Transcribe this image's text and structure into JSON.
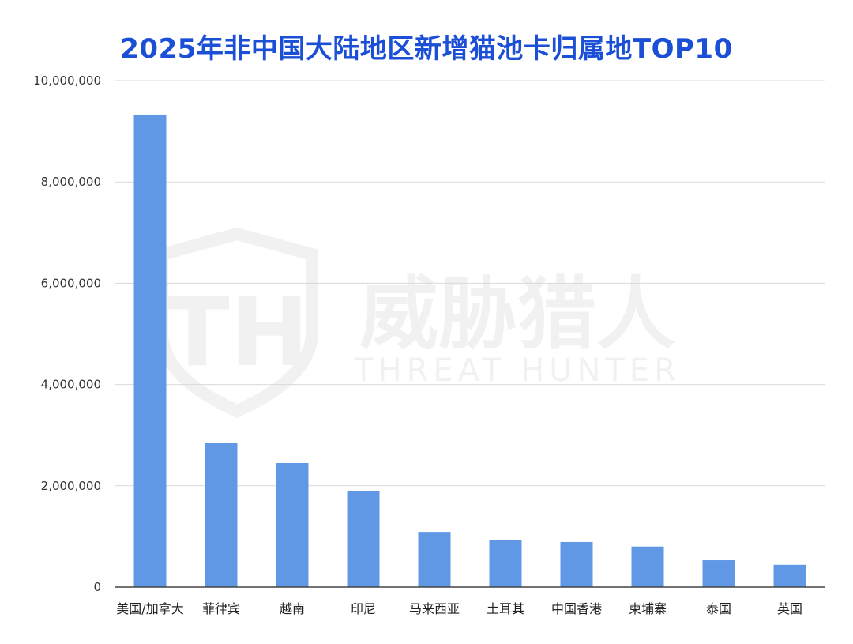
{
  "watermark": {
    "logo_letters": "TH",
    "cn_text": "威胁猎人",
    "en_text": "THREAT HUNTER"
  },
  "colors": {
    "title": "#1a4fd6",
    "bar": "#6098e6",
    "grid": "#d9d9d9",
    "axis": "#444444"
  },
  "chart_data": {
    "type": "bar",
    "title": "2025年非中国大陆地区新增猫池卡归属地TOP10",
    "xlabel": "",
    "ylabel": "",
    "categories": [
      "美国/加拿大",
      "菲律宾",
      "越南",
      "印尼",
      "马来西亚",
      "土耳其",
      "中国香港",
      "柬埔寨",
      "泰国",
      "英国"
    ],
    "values": [
      9330000,
      2840000,
      2450000,
      1900000,
      1090000,
      930000,
      890000,
      800000,
      530000,
      440000
    ],
    "ylim": [
      0,
      10000000
    ],
    "yticks": [
      0,
      2000000,
      4000000,
      6000000,
      8000000,
      10000000
    ],
    "ytick_labels": [
      "0",
      "2,000,000",
      "4,000,000",
      "6,000,000",
      "8,000,000",
      "10,000,000"
    ],
    "grid": true,
    "legend": "none"
  }
}
